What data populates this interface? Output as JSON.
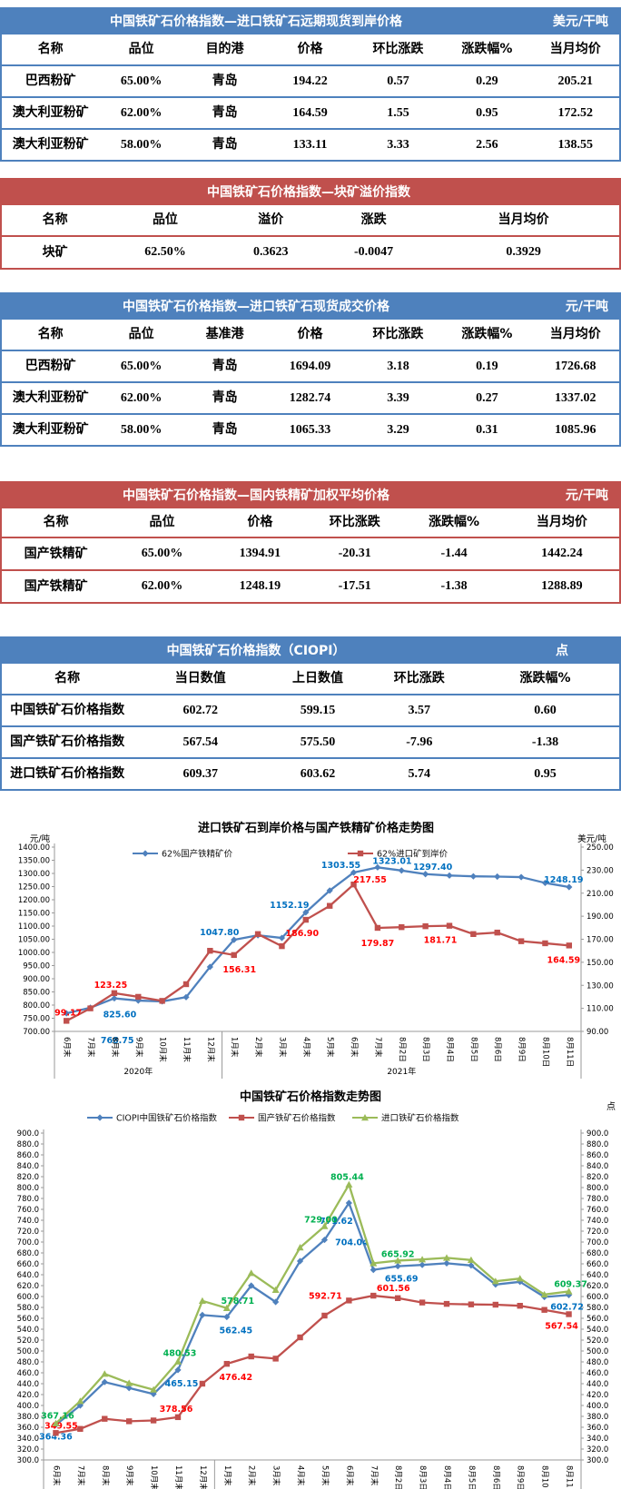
{
  "tables": [
    {
      "theme": "blue",
      "title": "中国铁矿石价格指数—进口铁矿石远期现货到岸价格",
      "unit": "美元/干吨",
      "columns": [
        "名称",
        "品位",
        "目的港",
        "价格",
        "环比涨跌",
        "涨跌幅%",
        "当月均价"
      ],
      "rows": [
        [
          "巴西粉矿",
          "65.00%",
          "青岛",
          "194.22",
          "0.57",
          "0.29",
          "205.21"
        ],
        [
          "澳大利亚粉矿",
          "62.00%",
          "青岛",
          "164.59",
          "1.55",
          "0.95",
          "172.52"
        ],
        [
          "澳大利亚粉矿",
          "58.00%",
          "青岛",
          "133.11",
          "3.33",
          "2.56",
          "138.55"
        ]
      ]
    },
    {
      "theme": "red",
      "title": "中国铁矿石价格指数—块矿溢价指数",
      "unit": "",
      "columns": [
        "名称",
        "品位",
        "溢价",
        "涨跌",
        "当月均价"
      ],
      "rows": [
        [
          "块矿",
          "62.50%",
          "0.3623",
          "-0.0047",
          "0.3929"
        ]
      ]
    },
    {
      "theme": "blue",
      "title": "中国铁矿石价格指数—进口铁矿石现货成交价格",
      "unit": "元/干吨",
      "columns": [
        "名称",
        "品位",
        "基准港",
        "价格",
        "环比涨跌",
        "涨跌幅%",
        "当月均价"
      ],
      "rows": [
        [
          "巴西粉矿",
          "65.00%",
          "青岛",
          "1694.09",
          "3.18",
          "0.19",
          "1726.68"
        ],
        [
          "澳大利亚粉矿",
          "62.00%",
          "青岛",
          "1282.74",
          "3.39",
          "0.27",
          "1337.02"
        ],
        [
          "澳大利亚粉矿",
          "58.00%",
          "青岛",
          "1065.33",
          "3.29",
          "0.31",
          "1085.96"
        ]
      ]
    },
    {
      "theme": "red",
      "title": "中国铁矿石价格指数—国内铁精矿加权平均价格",
      "unit": "元/干吨",
      "columns": [
        "名称",
        "品位",
        "价格",
        "环比涨跌",
        "涨跌幅%",
        "当月均价"
      ],
      "rows": [
        [
          "国产铁精矿",
          "65.00%",
          "1394.91",
          "-20.31",
          "-1.44",
          "1442.24"
        ],
        [
          "国产铁精矿",
          "62.00%",
          "1248.19",
          "-17.51",
          "-1.38",
          "1288.89"
        ]
      ]
    },
    {
      "theme": "blue",
      "title": "中国铁矿石价格指数（CIOPI）",
      "unit": "点",
      "columns": [
        "名称",
        "当日数值",
        "上日数值",
        "环比涨跌",
        "涨跌幅%"
      ],
      "rows": [
        [
          "中国铁矿石价格指数",
          "602.72",
          "599.15",
          "3.57",
          "0.60"
        ],
        [
          "国产铁矿石价格指数",
          "567.54",
          "575.50",
          "-7.96",
          "-1.38"
        ],
        [
          "进口铁矿石价格指数",
          "609.37",
          "603.62",
          "5.74",
          "0.95"
        ]
      ]
    }
  ],
  "chart_data": [
    {
      "type": "line",
      "title": "进口铁矿石到岸价格与国产铁精矿价格走势图",
      "left_axis": {
        "label": "元/吨",
        "min": 700,
        "max": 1400,
        "step": 50
      },
      "right_axis": {
        "label": "美元/吨",
        "min": 90,
        "max": 250,
        "step": 20
      },
      "categories": [
        "6月末",
        "7月末",
        "8月末",
        "9月末",
        "10月末",
        "11月末",
        "12月末",
        "1月末",
        "2月末",
        "3月末",
        "4月末",
        "5月末",
        "6月末",
        "7月末",
        "8月2日",
        "8月3日",
        "8月4日",
        "8月5日",
        "8月6日",
        "8月9日",
        "8月10日",
        "8月11日"
      ],
      "year_groups": [
        {
          "label": "2020年",
          "count": 7
        },
        {
          "label": "2021年",
          "count": 15
        }
      ],
      "series": [
        {
          "name": "62%国产铁精矿价",
          "axis": "left",
          "line_color": "#4f81bd",
          "label_color": "#0070c0",
          "marker": "diamond",
          "values": [
            768.75,
            790,
            825.6,
            817,
            814,
            830,
            945,
            1047.8,
            1065,
            1055,
            1152.19,
            1235,
            1303.55,
            1323.01,
            1311,
            1297.4,
            1292,
            1289,
            1288,
            1286,
            1264,
            1248.19
          ],
          "point_labels": [
            {
              "i": 0,
              "text": "768.75",
              "dx": 56,
              "dy": 30
            },
            {
              "i": 2,
              "text": "825.60",
              "dx": 6,
              "dy": 18
            },
            {
              "i": 7,
              "text": "1047.80",
              "dx": -16,
              "dy": -8
            },
            {
              "i": 10,
              "text": "1152.19",
              "dx": -18,
              "dy": -8
            },
            {
              "i": 12,
              "text": "1303.55",
              "dx": -14,
              "dy": -8
            },
            {
              "i": 13,
              "text": "1323.01",
              "dx": 16,
              "dy": -7
            },
            {
              "i": 15,
              "text": "1297.40",
              "dx": 8,
              "dy": -8
            },
            {
              "i": 21,
              "text": "1248.19",
              "dx": -6,
              "dy": -8
            }
          ]
        },
        {
          "name": "62%进口矿到岸价",
          "axis": "right",
          "line_color": "#c0504d",
          "label_color": "#ff0000",
          "marker": "square",
          "values": [
            99.17,
            110,
            123.25,
            120,
            116.5,
            131,
            160,
            156.31,
            174.5,
            164,
            186.9,
            199,
            217.55,
            179.87,
            180.5,
            181.3,
            181.71,
            174.5,
            175.8,
            168.3,
            166.5,
            164.59
          ],
          "point_labels": [
            {
              "i": 0,
              "text": "99.17",
              "dx": 2,
              "dy": -9
            },
            {
              "i": 2,
              "text": "123.25",
              "dx": -4,
              "dy": -9
            },
            {
              "i": 7,
              "text": "156.31",
              "dx": 6,
              "dy": 16
            },
            {
              "i": 10,
              "text": "186.90",
              "dx": -4,
              "dy": 15
            },
            {
              "i": 12,
              "text": "217.55",
              "dx": 18,
              "dy": -5
            },
            {
              "i": 13,
              "text": "179.87",
              "dx": 0,
              "dy": 17
            },
            {
              "i": 16,
              "text": "181.71",
              "dx": -10,
              "dy": 16
            },
            {
              "i": 21,
              "text": "164.59",
              "dx": -6,
              "dy": 16
            }
          ]
        }
      ]
    },
    {
      "type": "line",
      "title": "中国铁矿石价格指数走势图",
      "unit": "点",
      "left_axis": {
        "label": "",
        "min": 300,
        "max": 900,
        "step": 20
      },
      "right_axis": {
        "label": "",
        "min": 300,
        "max": 900,
        "step": 20
      },
      "categories": [
        "6月末",
        "7月末",
        "8月末",
        "9月末",
        "10月末",
        "11月末",
        "12月末",
        "1月末",
        "2月末",
        "3月末",
        "4月末",
        "5月末",
        "6月末",
        "7月末",
        "8月2日",
        "8月3日",
        "8月4日",
        "8月5日",
        "8月6日",
        "8月9日",
        "8月10日",
        "8月11日"
      ],
      "year_groups": [
        {
          "label": "2020年",
          "count": 7
        },
        {
          "label": "2021年",
          "count": 15
        }
      ],
      "series": [
        {
          "name": "CIOPI中国铁矿石价格指数",
          "axis": "left",
          "line_color": "#4f81bd",
          "label_color": "#0070c0",
          "marker": "diamond",
          "values": [
            364.36,
            400,
            443,
            432,
            421,
            465.15,
            566,
            562.45,
            620,
            590,
            665,
            704.04,
            771.62,
            649,
            655.69,
            658,
            661,
            657,
            622,
            627,
            599.15,
            602.72
          ],
          "point_labels": [
            {
              "i": 0,
              "text": "364.36",
              "dx": 0,
              "dy": 13
            },
            {
              "i": 5,
              "text": "465.15",
              "dx": 4,
              "dy": 15
            },
            {
              "i": 7,
              "text": "562.45",
              "dx": 10,
              "dy": 15
            },
            {
              "i": 11,
              "text": "704.04",
              "dx": 30,
              "dy": 3
            },
            {
              "i": 12,
              "text": "771.62",
              "dx": -14,
              "dy": 20
            },
            {
              "i": 14,
              "text": "655.69",
              "dx": 4,
              "dy": 14
            },
            {
              "i": 21,
              "text": "602.72",
              "dx": -2,
              "dy": 13
            }
          ]
        },
        {
          "name": "国产铁矿石价格指数",
          "axis": "left",
          "line_color": "#c0504d",
          "label_color": "#ff0000",
          "marker": "square",
          "values": [
            349.55,
            357,
            375.5,
            371,
            372.5,
            378.56,
            440,
            476.42,
            490,
            486,
            525,
            565,
            592.71,
            601.56,
            597,
            589,
            586.5,
            585.5,
            585,
            583,
            575.5,
            567.54
          ],
          "point_labels": [
            {
              "i": 0,
              "text": "349.55",
              "dx": 6,
              "dy": -8
            },
            {
              "i": 5,
              "text": "378.56",
              "dx": -2,
              "dy": -9
            },
            {
              "i": 7,
              "text": "476.42",
              "dx": 10,
              "dy": 15
            },
            {
              "i": 12,
              "text": "592.71",
              "dx": -26,
              "dy": -5
            },
            {
              "i": 13,
              "text": "601.56",
              "dx": 22,
              "dy": -8
            },
            {
              "i": 21,
              "text": "567.54",
              "dx": -8,
              "dy": 13
            }
          ]
        },
        {
          "name": "进口铁矿石价格指数",
          "axis": "left",
          "line_color": "#9bbb59",
          "label_color": "#00b050",
          "marker": "triangle",
          "values": [
            367.16,
            408,
            458,
            441,
            429,
            480.53,
            592,
            578.71,
            643,
            612,
            690,
            729,
            805.44,
            661,
            665.92,
            668,
            671,
            667,
            628,
            633,
            603.62,
            609.37
          ],
          "point_labels": [
            {
              "i": 0,
              "text": "367.16",
              "dx": 2,
              "dy": -8
            },
            {
              "i": 5,
              "text": "480.53",
              "dx": 2,
              "dy": -9
            },
            {
              "i": 7,
              "text": "578.71",
              "dx": 12,
              "dy": -8
            },
            {
              "i": 11,
              "text": "729.00",
              "dx": -4,
              "dy": -7
            },
            {
              "i": 12,
              "text": "805.44",
              "dx": -2,
              "dy": -8
            },
            {
              "i": 14,
              "text": "665.92",
              "dx": 0,
              "dy": -7
            },
            {
              "i": 21,
              "text": "609.37",
              "dx": 2,
              "dy": -8
            }
          ]
        }
      ]
    }
  ]
}
